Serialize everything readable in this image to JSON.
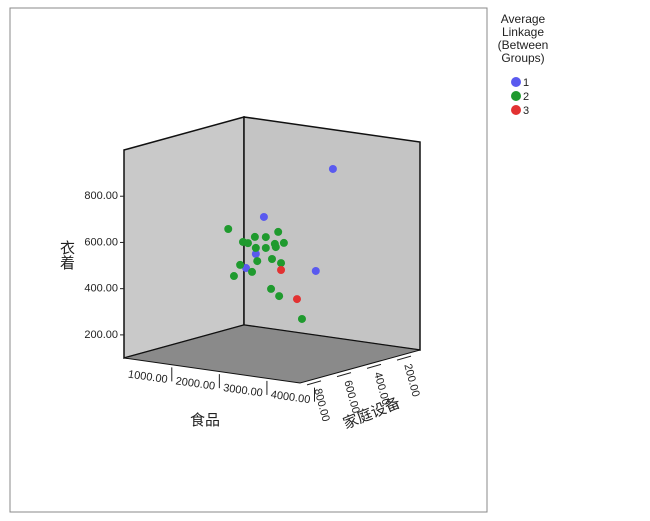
{
  "chart_data": {
    "type": "scatter3d",
    "x_label": "食品",
    "y_label": "衣着",
    "z_label": "家庭设备",
    "xlim": [
      500,
      4200
    ],
    "ylim": [
      100,
      1000
    ],
    "zlim": [
      100,
      900
    ],
    "xticks": [
      {
        "value": 1000,
        "label": "1000.00"
      },
      {
        "value": 2000,
        "label": "2000.00"
      },
      {
        "value": 3000,
        "label": "3000.00"
      },
      {
        "value": 4000,
        "label": "4000.00"
      }
    ],
    "yticks": [
      {
        "value": 200,
        "label": "200.00"
      },
      {
        "value": 400,
        "label": "400.00"
      },
      {
        "value": 600,
        "label": "600.00"
      },
      {
        "value": 800,
        "label": "800.00"
      }
    ],
    "zticks": [
      {
        "value": 200,
        "label": "200.00"
      },
      {
        "value": 400,
        "label": "400.00"
      },
      {
        "value": 600,
        "label": "600.00"
      },
      {
        "value": 800,
        "label": "800.00"
      }
    ],
    "legend_title": "Average Linkage (Between Groups)",
    "series": [
      {
        "name": "1",
        "color": "#5a5aef",
        "x": [
          3000,
          2180,
          2010,
          2120,
          2640
        ],
        "y": [
          884,
          688,
          523,
          483,
          432
        ],
        "z": [
          300,
          500,
          500,
          600,
          300
        ]
      },
      {
        "name": "2",
        "color": "#1f9a2e",
        "x": [
          1430,
          1740,
          1845,
          1990,
          2220,
          2480,
          2010,
          2220,
          2410,
          2600,
          2430,
          2040,
          2350,
          2540,
          1680,
          1930,
          1550,
          2330,
          2500,
          2980
        ],
        "y": [
          614,
          567,
          565,
          596,
          602,
          632,
          549,
          555,
          578,
          588,
          565,
          493,
          511,
          499,
          466,
          443,
          414,
          381,
          355,
          270
        ],
        "z": [
          500,
          500,
          500,
          500,
          500,
          500,
          500,
          500,
          500,
          500,
          500,
          500,
          500,
          500,
          500,
          500,
          500,
          500,
          500,
          500
        ]
      },
      {
        "name": "3",
        "color": "#e23232",
        "x": [
          2540,
          2560
        ],
        "y": [
          469,
          326
        ],
        "z": [
          500,
          400
        ]
      }
    ]
  }
}
